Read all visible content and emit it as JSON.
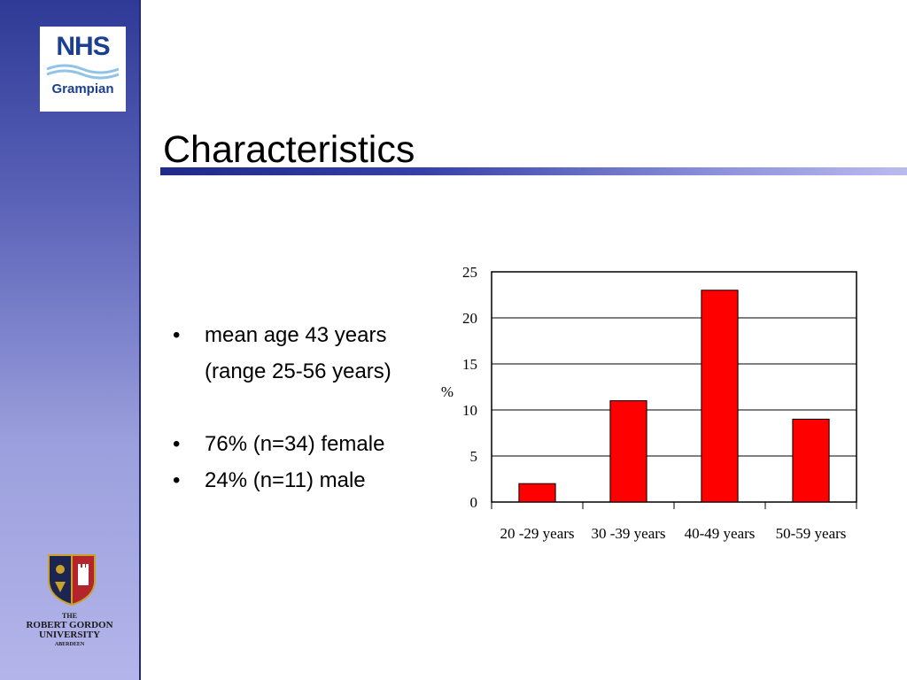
{
  "logos": {
    "nhs_text": "NHS",
    "nhs_region": "Grampian",
    "university_lines": [
      "THE",
      "ROBERT GORDON",
      "UNIVERSITY",
      "ABERDEEN"
    ]
  },
  "slide": {
    "title": "Characteristics",
    "bullets": [
      {
        "text": "mean age 43 years"
      },
      {
        "text": "(range 25-56 years)"
      },
      {
        "text": "76% (n=34) female"
      },
      {
        "text": "24% (n=11) male"
      }
    ],
    "bullet_symbol": "•"
  },
  "colors": {
    "bar": "#ff0000",
    "title_rule": "#1f2a8a",
    "sidebar_top": "#2e3a96",
    "sidebar_bottom": "#b3b5ea"
  },
  "chart_data": {
    "type": "bar",
    "categories": [
      "20 -29 years",
      "30 -39 years",
      "40-49 years",
      "50-59 years"
    ],
    "values": [
      2,
      11,
      23,
      9
    ],
    "title": "",
    "xlabel": "",
    "ylabel": "%",
    "ylim": [
      0,
      25
    ],
    "yticks": [
      0,
      5,
      10,
      15,
      20,
      25
    ],
    "grid": true,
    "legend": "none"
  }
}
